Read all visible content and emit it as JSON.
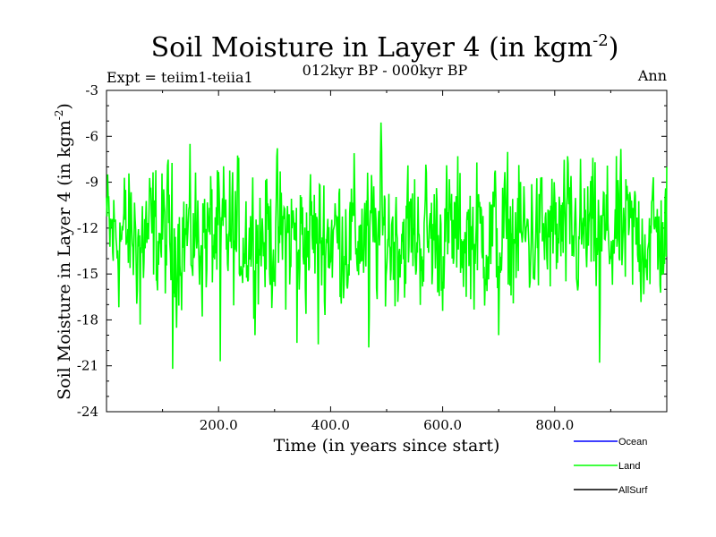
{
  "header": {
    "title_main": "Soil Moisture in Layer 4 (in kgm",
    "title_sup": "-2",
    "title_close": ")",
    "subtitle": "012kyr BP - 000kyr BP",
    "expt_label": "Expt = teiim1-teiia1",
    "period_label": "Ann"
  },
  "chart_data": {
    "type": "line",
    "xlabel": "Time (in years since start)",
    "ylabel_main": "Soil Moisture in Layer 4 (in kgm",
    "ylabel_sup": "-2",
    "ylabel_close": ")",
    "xlim": [
      0,
      1000
    ],
    "ylim": [
      -24,
      -3
    ],
    "x_ticks": [
      200,
      400,
      600,
      800
    ],
    "x_tick_labels": [
      "200.0",
      "400.0",
      "600.0",
      "800.0"
    ],
    "y_ticks": [
      -24,
      -21,
      -18,
      -15,
      -12,
      -9,
      -6,
      -3
    ],
    "y_tick_labels": [
      "-24",
      "-21",
      "-18",
      "-15",
      "-12",
      "-9",
      "-6",
      "-3"
    ],
    "grid": false,
    "legend_position": "bottom-right",
    "series": [
      {
        "name": "Ocean",
        "color": "#0000ff",
        "values": []
      },
      {
        "name": "Land",
        "color": "#00ff00",
        "values_note_x": "years 0-999, one value per year",
        "summary": {
          "mean": -12.5,
          "min": -21.2,
          "max": -5.1,
          "extremes": [
            [
              0,
              -10.0
            ],
            [
              60,
              -18.3
            ],
            [
              118,
              -21.2
            ],
            [
              203,
              -20.7
            ],
            [
              340,
              -19.5
            ],
            [
              378,
              -19.6
            ],
            [
              468,
              -19.8
            ],
            [
              490,
              -5.1
            ],
            [
              700,
              -19.0
            ],
            [
              880,
              -20.8
            ],
            [
              1000,
              -8.0
            ]
          ]
        }
      },
      {
        "name": "AllSurf",
        "color": "#000000",
        "values": []
      }
    ]
  }
}
